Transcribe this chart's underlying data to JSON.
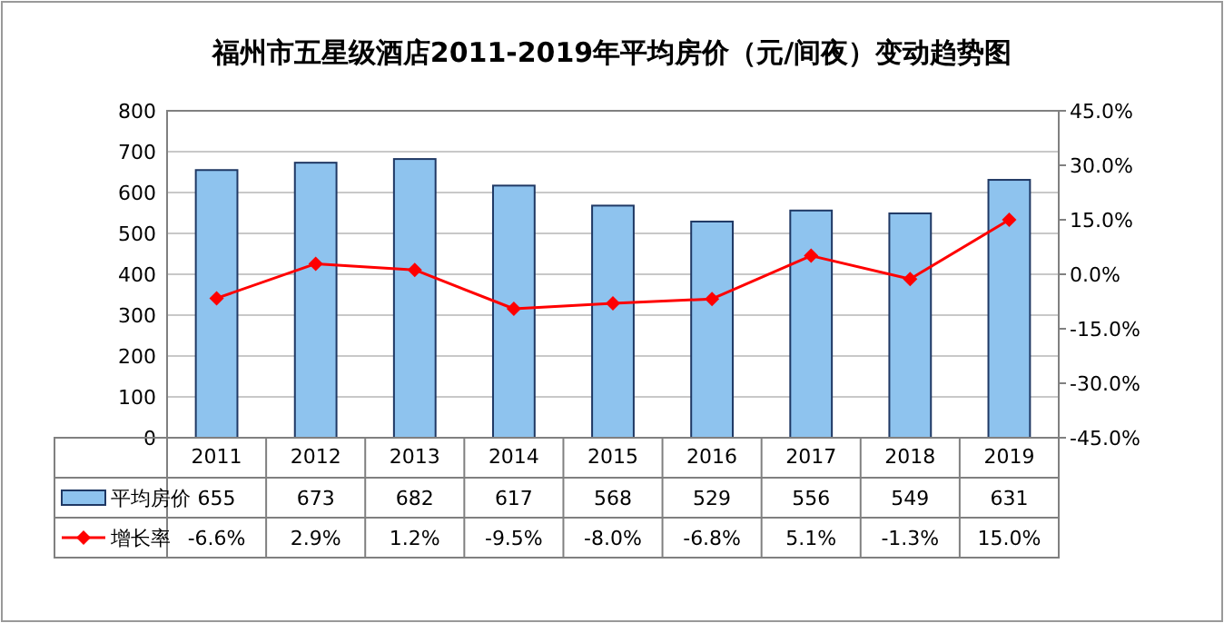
{
  "chart_data": {
    "type": "bar",
    "title": "福州市五星级酒店2011-2019年平均房价（元/间夜）变动趋势图",
    "categories": [
      "2011",
      "2012",
      "2013",
      "2014",
      "2015",
      "2016",
      "2017",
      "2018",
      "2019"
    ],
    "series": [
      {
        "name": "平均房价",
        "color": "#8ec3ee",
        "values": [
          655,
          673,
          682,
          617,
          568,
          529,
          556,
          549,
          631
        ],
        "value_labels": [
          "655",
          "673",
          "682",
          "617",
          "568",
          "529",
          "556",
          "549",
          "631"
        ]
      },
      {
        "name": "增长率",
        "type": "line",
        "axis": "y2",
        "color": "#ff0000",
        "marker": "diamond",
        "values": [
          -6.6,
          2.9,
          1.2,
          -9.5,
          -8.0,
          -6.8,
          5.1,
          -1.3,
          15.0
        ],
        "value_labels": [
          "-6.6%",
          "2.9%",
          "1.2%",
          "-9.5%",
          "-8.0%",
          "-6.8%",
          "5.1%",
          "-1.3%",
          "15.0%"
        ]
      }
    ],
    "ylim": [
      0,
      800
    ],
    "yticks": [
      0,
      100,
      200,
      300,
      400,
      500,
      600,
      700,
      800
    ],
    "y2lim": [
      -45,
      45
    ],
    "y2ticks": [
      {
        "value": -45,
        "label": "-45.0%"
      },
      {
        "value": -30,
        "label": "-30.0%"
      },
      {
        "value": -15,
        "label": "-15.0%"
      },
      {
        "value": 0,
        "label": "0.0%"
      },
      {
        "value": 15,
        "label": "15.0%"
      },
      {
        "value": 30,
        "label": "30.0%"
      },
      {
        "value": 45,
        "label": "45.0%"
      }
    ],
    "grid": "y",
    "legend": "bottom"
  }
}
